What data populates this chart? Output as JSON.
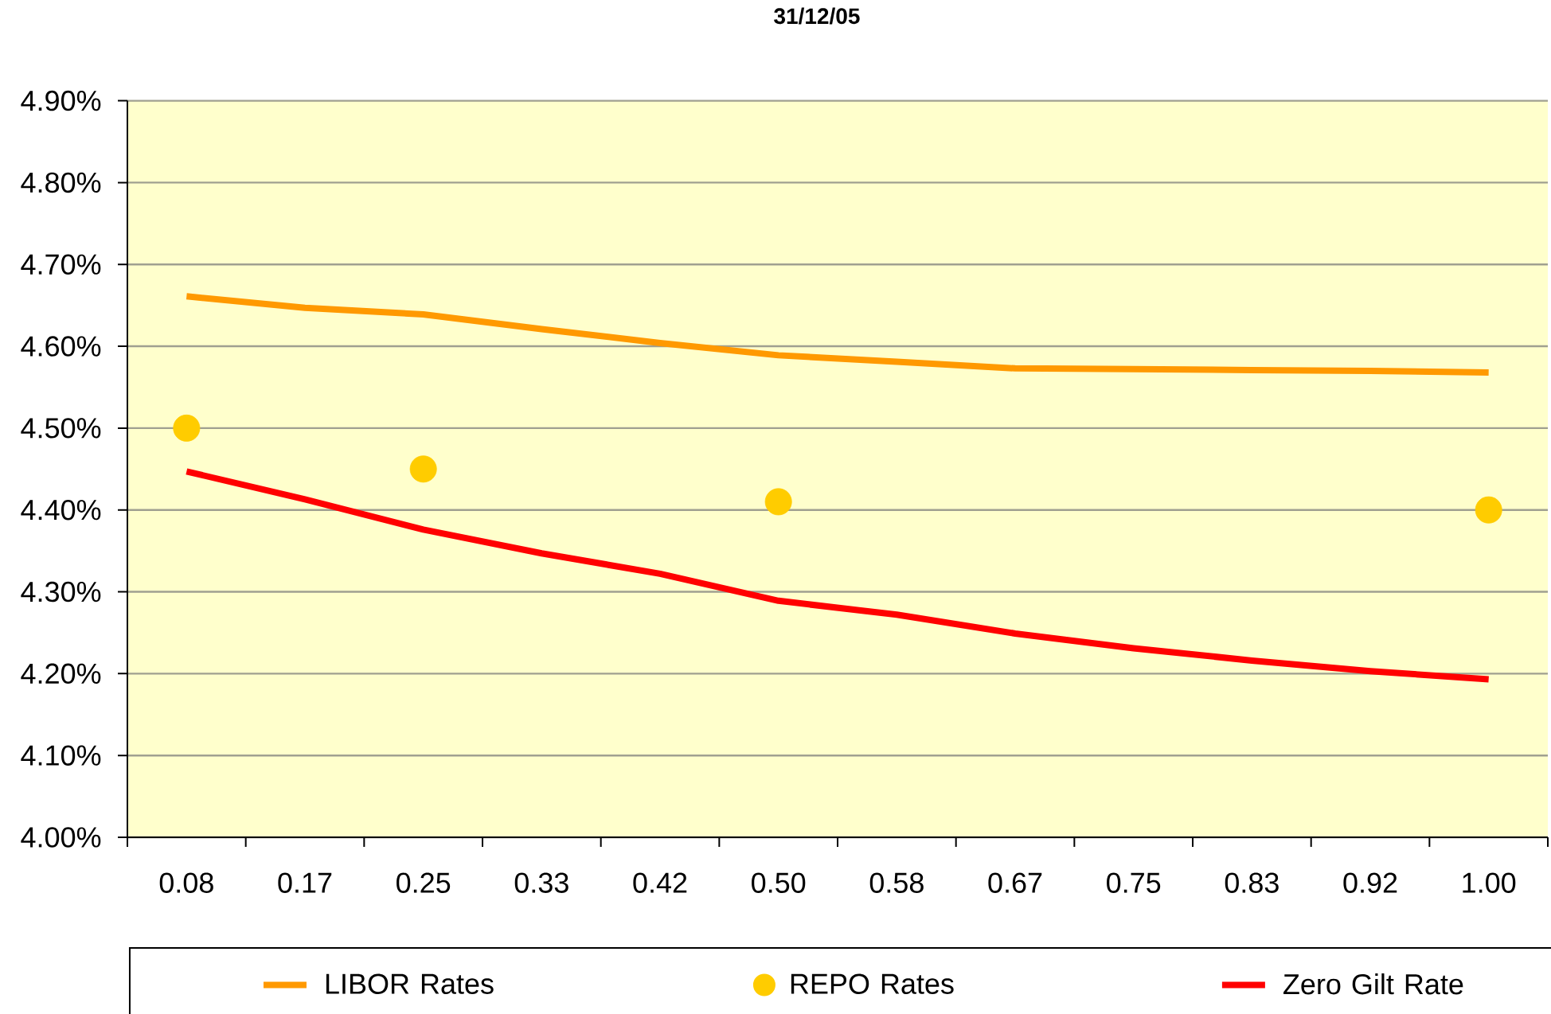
{
  "chart_data": {
    "type": "line",
    "title": "31/12/05",
    "categories": [
      "0.08",
      "0.17",
      "0.25",
      "0.33",
      "0.42",
      "0.50",
      "0.58",
      "0.67",
      "0.75",
      "0.83",
      "0.92",
      "1.00"
    ],
    "series": [
      {
        "name": "LIBOR Rates",
        "color": "#ff9900",
        "values": [
          4.661,
          4.647,
          4.639,
          4.621,
          4.604,
          4.589,
          4.581,
          4.573,
          4.572,
          4.571,
          4.57,
          4.568
        ]
      },
      {
        "name": "REPO Rates",
        "type": "scatter",
        "marker": "circle",
        "color": "#ffcc00",
        "values": [
          4.5,
          null,
          4.45,
          null,
          null,
          4.41,
          null,
          null,
          null,
          null,
          null,
          4.4
        ]
      },
      {
        "name": "Zero Gilt Rate",
        "color": "#ff0000",
        "values": [
          4.447,
          4.413,
          4.376,
          4.347,
          4.322,
          4.289,
          4.272,
          4.249,
          4.231,
          4.216,
          4.203,
          4.193
        ]
      }
    ],
    "ylim": [
      4.0,
      4.9
    ],
    "yticks": [
      {
        "value": 4.0,
        "label": "4.00%"
      },
      {
        "value": 4.1,
        "label": "4.10%"
      },
      {
        "value": 4.2,
        "label": "4.20%"
      },
      {
        "value": 4.3,
        "label": "4.30%"
      },
      {
        "value": 4.4,
        "label": "4.40%"
      },
      {
        "value": 4.5,
        "label": "4.50%"
      },
      {
        "value": 4.6,
        "label": "4.60%"
      },
      {
        "value": 4.7,
        "label": "4.70%"
      },
      {
        "value": 4.8,
        "label": "4.80%"
      },
      {
        "value": 4.9,
        "label": "4.90%"
      }
    ],
    "grid": "y",
    "legend": "bottom",
    "marker": "none",
    "line_style": "solid"
  }
}
